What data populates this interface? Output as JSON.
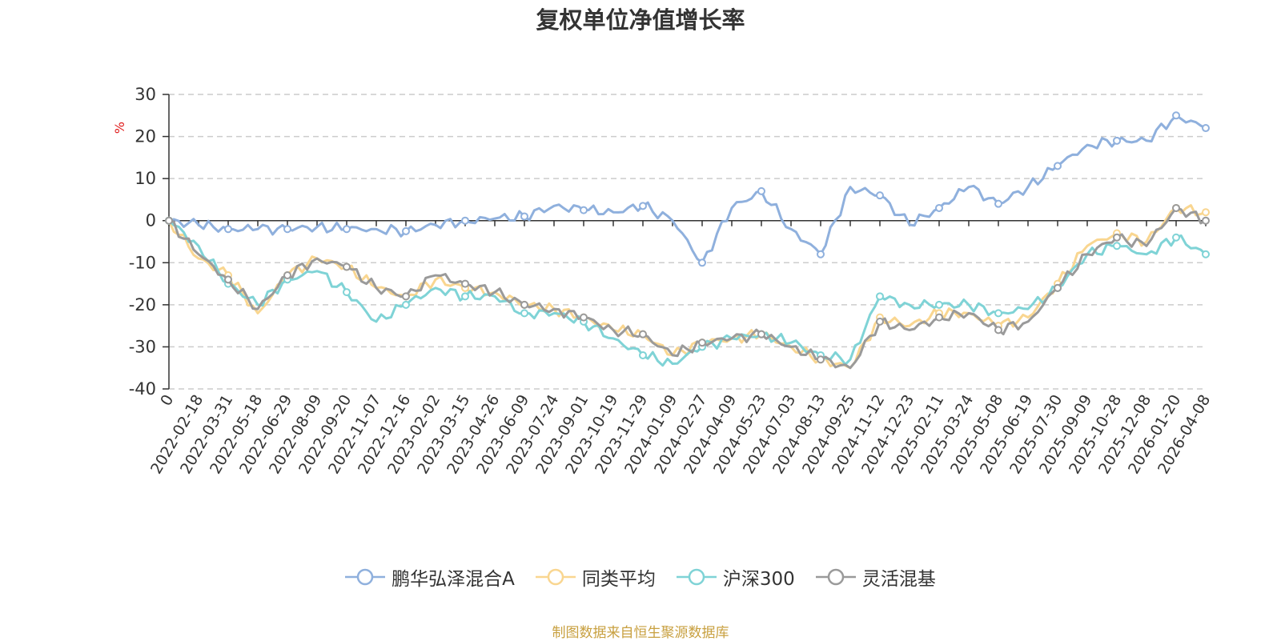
{
  "chart_data": {
    "type": "line",
    "title": "复权单位净值增长率",
    "ylabel": "%",
    "xlabel": "",
    "ylim": [
      -40,
      30
    ],
    "yticks": [
      30,
      20,
      10,
      0,
      -10,
      -20,
      -30,
      -40
    ],
    "grid": true,
    "legend_position": "bottom",
    "categories": [
      "0",
      "2022-02-18",
      "2022-03-31",
      "2022-05-18",
      "2022-06-29",
      "2022-08-09",
      "2022-09-20",
      "2022-11-07",
      "2022-12-16",
      "2023-02-02",
      "2023-03-15",
      "2023-04-26",
      "2023-06-09",
      "2023-07-24",
      "2023-09-01",
      "2023-10-19",
      "2023-11-29",
      "2024-01-09",
      "2024-02-27",
      "2024-04-09",
      "2024-05-23",
      "2024-07-03",
      "2024-08-13",
      "2024-09-25",
      "2024-11-12",
      "2024-12-23",
      "2025-02-11",
      "2025-03-24",
      "2025-05-08",
      "2025-06-19",
      "2025-07-30",
      "2025-09-09",
      "2025-10-28",
      "2025-12-08",
      "2026-01-20",
      "2026-04-08"
    ],
    "series": [
      {
        "name": "鹏华弘泽混合A",
        "color": "#8fb0dd",
        "values": [
          0,
          -1,
          -2,
          -2,
          -2,
          -1.5,
          -2,
          -2,
          -2.5,
          -1,
          0,
          0.5,
          1,
          3.5,
          2.5,
          2,
          3.5,
          0,
          -10,
          3,
          7,
          -2,
          -8,
          8,
          6,
          -1,
          3,
          8,
          4,
          8,
          13,
          18,
          19,
          19,
          25,
          22
        ]
      },
      {
        "name": "同类平均",
        "color": "#f9d690",
        "values": [
          0,
          -9,
          -13,
          -22,
          -13,
          -9,
          -11,
          -16,
          -18,
          -14,
          -16,
          -17,
          -20,
          -21,
          -23,
          -26,
          -27,
          -32,
          -29,
          -28,
          -27,
          -30,
          -33,
          -35,
          -23,
          -25,
          -22,
          -22,
          -25,
          -23,
          -15,
          -6,
          -3,
          -5,
          3,
          2
        ]
      },
      {
        "name": "沪深300",
        "color": "#7fd3d6",
        "values": [
          0,
          -6,
          -15,
          -20,
          -14,
          -12,
          -17,
          -24,
          -20,
          -16,
          -18,
          -18,
          -22,
          -22,
          -24,
          -28,
          -32,
          -34,
          -30,
          -28,
          -27,
          -29,
          -32,
          -33,
          -18,
          -20,
          -20,
          -20,
          -22,
          -21,
          -16,
          -8,
          -6,
          -8,
          -4,
          -8
        ]
      },
      {
        "name": "灵活混基",
        "color": "#9a9a9a",
        "values": [
          0,
          -8,
          -14,
          -21,
          -13,
          -9,
          -11,
          -16,
          -18,
          -13,
          -15,
          -17,
          -20,
          -21,
          -23,
          -26,
          -27,
          -32,
          -29,
          -28,
          -27,
          -30,
          -33,
          -35,
          -24,
          -26,
          -23,
          -22,
          -26,
          -24,
          -16,
          -8,
          -4,
          -6,
          3,
          0
        ]
      }
    ]
  },
  "source_note": "制图数据来自恒生聚源数据库"
}
